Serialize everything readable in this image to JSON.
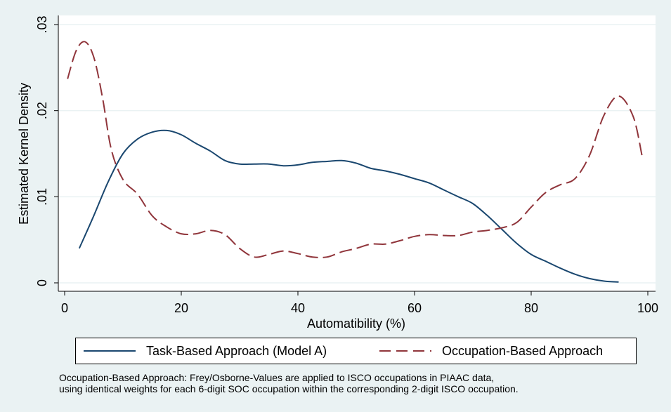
{
  "chart_data": {
    "type": "line",
    "title": "",
    "xlabel": "Automatibility (%)",
    "ylabel": "Estimated Kernel Density",
    "xlim": [
      0,
      100
    ],
    "ylim": [
      0,
      0.03
    ],
    "xticks": [
      0,
      20,
      40,
      60,
      80,
      100
    ],
    "xtick_labels": [
      "0",
      "20",
      "40",
      "60",
      "80",
      "100"
    ],
    "yticks": [
      0,
      0.01,
      0.02,
      0.03
    ],
    "ytick_labels": [
      "0",
      ".01",
      ".02",
      ".03"
    ],
    "grid": true,
    "series": [
      {
        "name": "Task-Based Approach (Model A)",
        "color": "#1a476f",
        "style": "solid",
        "x": [
          2.5,
          5,
          7.5,
          10,
          12.5,
          15,
          17.5,
          20,
          22.5,
          25,
          27.5,
          30,
          32.5,
          35,
          37.5,
          40,
          42.5,
          45,
          47.5,
          50,
          52.5,
          55,
          57.5,
          60,
          62.5,
          65,
          67.5,
          70,
          72.5,
          75,
          77.5,
          80,
          82.5,
          85,
          87.5,
          90,
          92.5,
          95
        ],
        "y": [
          0.004,
          0.0078,
          0.0118,
          0.015,
          0.0167,
          0.0175,
          0.0177,
          0.0172,
          0.0162,
          0.0153,
          0.0142,
          0.0138,
          0.0138,
          0.0138,
          0.0136,
          0.0137,
          0.014,
          0.0141,
          0.0142,
          0.0139,
          0.0133,
          0.013,
          0.0126,
          0.0121,
          0.0116,
          0.0108,
          0.01,
          0.0092,
          0.0078,
          0.0062,
          0.0046,
          0.0033,
          0.0025,
          0.0017,
          0.001,
          0.0005,
          0.0002,
          0.0001
        ]
      },
      {
        "name": "Occupation-Based Approach",
        "color": "#90353b",
        "style": "dashed",
        "x": [
          0.5,
          2,
          3.5,
          5,
          6.5,
          8,
          10,
          12.5,
          15,
          17.5,
          20,
          22.5,
          25,
          27.5,
          30,
          32.5,
          35,
          37.5,
          40,
          42.5,
          45,
          47.5,
          50,
          52.5,
          55,
          57.5,
          60,
          62.5,
          65,
          67.5,
          70,
          72.5,
          75,
          77.5,
          80,
          82.5,
          85,
          87.5,
          90,
          92.5,
          95,
          97.5,
          99
        ],
        "y": [
          0.0237,
          0.027,
          0.028,
          0.0262,
          0.0215,
          0.0155,
          0.012,
          0.0103,
          0.0078,
          0.0065,
          0.0057,
          0.0057,
          0.0061,
          0.0056,
          0.004,
          0.003,
          0.0033,
          0.0037,
          0.0034,
          0.003,
          0.003,
          0.0036,
          0.004,
          0.0045,
          0.0045,
          0.0049,
          0.0054,
          0.0056,
          0.0055,
          0.0055,
          0.0059,
          0.0061,
          0.0064,
          0.007,
          0.0088,
          0.0105,
          0.0114,
          0.0121,
          0.0148,
          0.0195,
          0.0217,
          0.0193,
          0.0148
        ]
      }
    ]
  },
  "legend": {
    "items": [
      {
        "label": "Task-Based Approach (Model A)",
        "color": "#1a476f",
        "style": "solid"
      },
      {
        "label": "Occupation-Based Approach",
        "color": "#90353b",
        "style": "dashed"
      }
    ]
  },
  "note": {
    "line1": "Occupation-Based Approach: Frey/Osborne-Values are applied to ISCO occupations in PIAAC data,",
    "line2": "using identical weights for each 6-digit SOC occupation within the corresponding 2-digit ISCO occupation."
  }
}
